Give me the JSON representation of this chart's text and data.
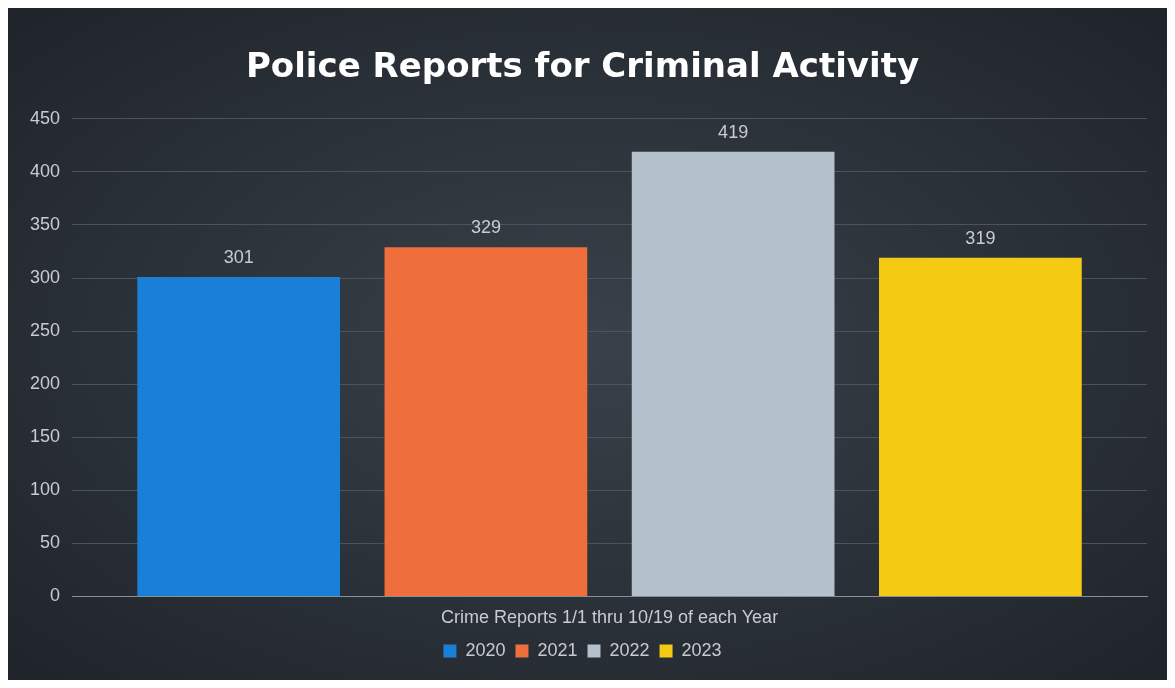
{
  "chart_data": {
    "type": "bar",
    "title": "Police Reports for Criminal Activity",
    "categories": [
      "Crime Reports 1/1 thru 10/19 of each Year"
    ],
    "series": [
      {
        "name": "2020",
        "color": "#1a7fd6",
        "values": [
          301
        ]
      },
      {
        "name": "2021",
        "color": "#ee6e3c",
        "values": [
          329
        ]
      },
      {
        "name": "2022",
        "color": "#b4c0cc",
        "values": [
          419
        ]
      },
      {
        "name": "2023",
        "color": "#f4cb12",
        "values": [
          319
        ]
      }
    ],
    "ylim": [
      0,
      450
    ],
    "yticks": [
      0,
      50,
      100,
      150,
      200,
      250,
      300,
      350,
      400,
      450
    ],
    "grid": "y",
    "legend": "bottom",
    "data_labels": true
  }
}
